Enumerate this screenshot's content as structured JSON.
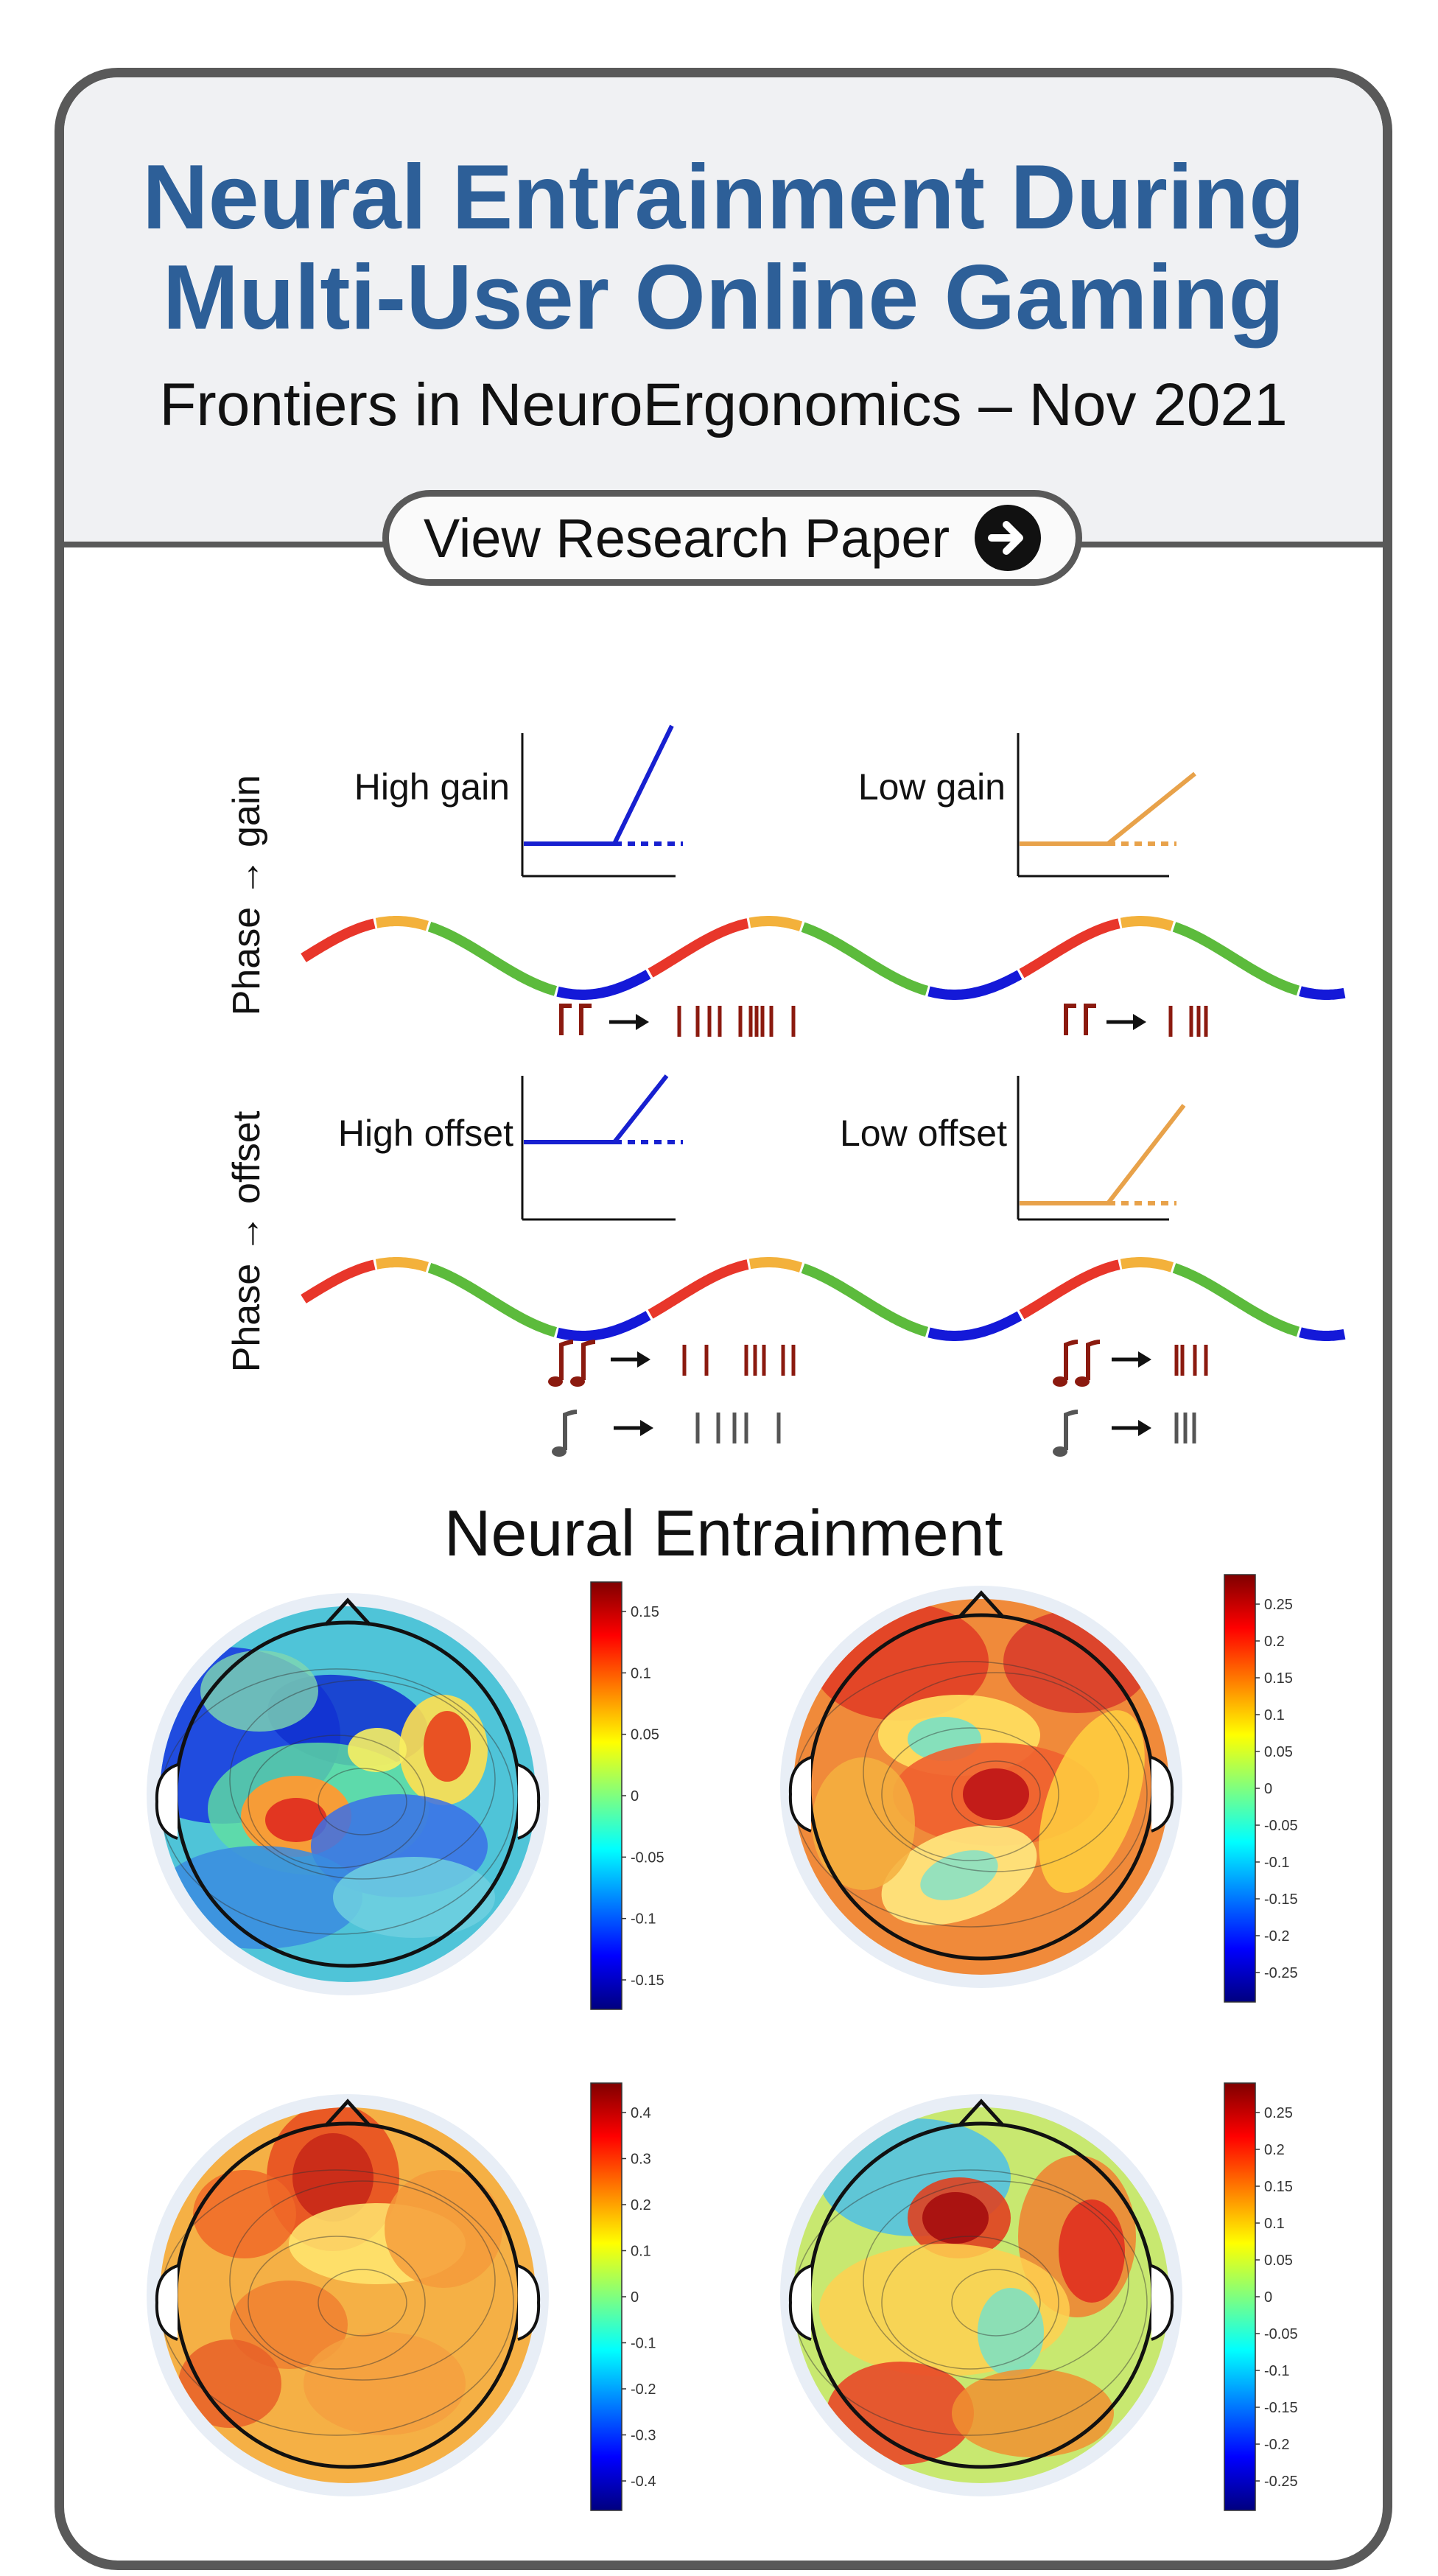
{
  "header": {
    "title_line1": "Neural Entrainment During",
    "title_line2": "Multi-User Online Gaming",
    "subtitle": "Frontiers in NeuroErgonomics – Nov 2021",
    "button_label": "View Research Paper",
    "button_icon": "arrow-right-circle-icon"
  },
  "figure1": {
    "row1_axis_label": "Phase → gain",
    "row2_axis_label": "Phase → offset",
    "panel_labels": [
      "High gain",
      "Low gain",
      "High offset",
      "Low offset"
    ],
    "phase_colors": [
      "#e8362a",
      "#f3b13b",
      "#5cbb3c",
      "#1419d8"
    ],
    "high_color": "#1720d0",
    "low_color": "#e8a24a",
    "spike_color": "#8b1a0f",
    "gray_color": "#555555"
  },
  "section": {
    "title": "Neural Entrainment"
  },
  "topomaps": [
    {
      "name": "top-left",
      "colorbar_ticks": [
        "0.15",
        "0.1",
        "0.05",
        "0",
        "-0.05",
        "-0.1",
        "-0.15"
      ]
    },
    {
      "name": "top-right",
      "colorbar_ticks": [
        "0.25",
        "0.2",
        "0.15",
        "0.1",
        "0.05",
        "0",
        "-0.05",
        "-0.1",
        "-0.15",
        "-0.2",
        "-0.25"
      ]
    },
    {
      "name": "bottom-left",
      "colorbar_ticks": [
        "0.4",
        "0.3",
        "0.2",
        "0.1",
        "0",
        "-0.1",
        "-0.2",
        "-0.3",
        "-0.4"
      ]
    },
    {
      "name": "bottom-right",
      "colorbar_ticks": [
        "0.25",
        "0.2",
        "0.15",
        "0.1",
        "0.05",
        "0",
        "-0.05",
        "-0.1",
        "-0.15",
        "-0.2",
        "-0.25"
      ]
    }
  ]
}
